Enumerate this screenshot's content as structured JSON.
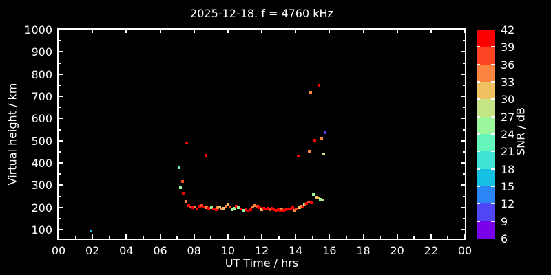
{
  "title": "2025-12-18. f = 4760 kHz",
  "colors": {
    "background": "#000000",
    "text": "#ffffff",
    "axis": "#ffffff"
  },
  "x_axis": {
    "label": "UT Time / hrs",
    "major_hours": [
      0,
      2,
      4,
      6,
      8,
      10,
      12,
      14,
      16,
      18,
      20,
      22,
      24
    ],
    "tick_labels": [
      "00",
      "02",
      "04",
      "06",
      "08",
      "10",
      "12",
      "14",
      "16",
      "18",
      "20",
      "22",
      "00"
    ],
    "minor_hours": [
      1,
      3,
      5,
      7,
      9,
      11,
      13,
      15,
      17,
      19,
      21,
      23
    ],
    "range_hr": [
      0,
      24
    ]
  },
  "y_axis": {
    "label": "Virtual height / km",
    "tick_values": [
      100,
      200,
      300,
      400,
      500,
      600,
      700,
      800,
      900,
      1000
    ],
    "minor_values": [
      150,
      250,
      350,
      450,
      550,
      650,
      750,
      850,
      950
    ],
    "range_km": [
      60,
      1000
    ]
  },
  "colorbar": {
    "label": "SNR / dB",
    "tick_values_top_to_bottom": [
      42,
      39,
      36,
      33,
      30,
      27,
      24,
      21,
      18,
      15,
      12,
      9,
      6
    ],
    "segment_colors_low_to_high": [
      "#7b00ea",
      "#5146f6",
      "#2a86f4",
      "#16c0e4",
      "#40e3d5",
      "#65f6bb",
      "#9cf69c",
      "#c4e485",
      "#f0c161",
      "#fb8440",
      "#fb4522",
      "#fa0000"
    ],
    "bin_edges_dB": [
      6,
      9,
      12,
      15,
      18,
      21,
      24,
      27,
      30,
      33,
      36,
      39,
      42
    ]
  },
  "chart_data": {
    "type": "scatter",
    "title": "2025-12-18. f = 4760 kHz",
    "xlabel": "UT Time / hrs",
    "ylabel": "Virtual height / km",
    "colorbar_label": "SNR / dB",
    "xlim": [
      0,
      24
    ],
    "ylim": [
      60,
      1000
    ],
    "snr_range_dB": [
      6,
      42
    ],
    "grid": false,
    "marker": "square",
    "points_format": [
      "hour_UT",
      "virtual_height_km",
      "snr_dB"
    ],
    "points": [
      [
        1.9,
        95,
        16
      ],
      [
        7.12,
        380,
        22
      ],
      [
        7.2,
        289,
        25
      ],
      [
        7.32,
        317,
        37
      ],
      [
        7.36,
        261,
        41
      ],
      [
        7.53,
        227,
        34
      ],
      [
        7.57,
        490,
        41
      ],
      [
        8.72,
        435,
        41
      ],
      [
        7.69,
        208,
        41
      ],
      [
        7.81,
        202,
        37
      ],
      [
        7.93,
        199,
        41
      ],
      [
        8.05,
        202,
        34
      ],
      [
        8.18,
        193,
        41
      ],
      [
        8.34,
        205,
        41
      ],
      [
        8.46,
        208,
        37
      ],
      [
        8.58,
        202,
        41
      ],
      [
        8.76,
        199,
        34
      ],
      [
        8.87,
        196,
        41
      ],
      [
        9.03,
        199,
        25
      ],
      [
        9.15,
        193,
        41
      ],
      [
        9.31,
        190,
        41
      ],
      [
        9.4,
        199,
        34
      ],
      [
        9.52,
        202,
        31
      ],
      [
        9.6,
        193,
        34
      ],
      [
        9.76,
        196,
        31
      ],
      [
        9.88,
        205,
        34
      ],
      [
        10.01,
        211,
        31
      ],
      [
        10.13,
        202,
        37
      ],
      [
        10.25,
        190,
        25
      ],
      [
        10.37,
        196,
        25
      ],
      [
        10.49,
        205,
        41
      ],
      [
        10.62,
        199,
        25
      ],
      [
        10.78,
        193,
        41
      ],
      [
        10.94,
        187,
        25
      ],
      [
        11.06,
        190,
        41
      ],
      [
        11.19,
        184,
        41
      ],
      [
        11.35,
        190,
        41
      ],
      [
        11.47,
        202,
        34
      ],
      [
        11.59,
        208,
        34
      ],
      [
        11.76,
        205,
        37
      ],
      [
        11.88,
        199,
        41
      ],
      [
        12.0,
        190,
        31
      ],
      [
        12.12,
        196,
        41
      ],
      [
        12.24,
        193,
        41
      ],
      [
        12.37,
        196,
        41
      ],
      [
        12.49,
        190,
        37
      ],
      [
        12.61,
        196,
        41
      ],
      [
        12.73,
        190,
        41
      ],
      [
        12.85,
        187,
        41
      ],
      [
        12.98,
        190,
        41
      ],
      [
        13.1,
        187,
        41
      ],
      [
        13.18,
        193,
        34
      ],
      [
        13.3,
        187,
        41
      ],
      [
        13.42,
        190,
        41
      ],
      [
        13.59,
        193,
        41
      ],
      [
        13.71,
        193,
        41
      ],
      [
        13.83,
        199,
        41
      ],
      [
        13.95,
        187,
        34
      ],
      [
        14.08,
        193,
        37
      ],
      [
        14.24,
        199,
        31
      ],
      [
        14.36,
        205,
        34
      ],
      [
        14.44,
        205,
        41
      ],
      [
        14.52,
        211,
        25
      ],
      [
        14.56,
        214,
        34
      ],
      [
        14.64,
        217,
        41
      ],
      [
        14.77,
        224,
        37
      ],
      [
        14.93,
        221,
        41
      ],
      [
        15.05,
        257,
        25
      ],
      [
        15.21,
        246,
        31
      ],
      [
        15.33,
        243,
        31
      ],
      [
        15.46,
        236,
        25
      ],
      [
        15.58,
        233,
        28
      ],
      [
        14.16,
        431,
        41
      ],
      [
        14.81,
        453,
        34
      ],
      [
        14.89,
        719,
        34
      ],
      [
        15.13,
        502,
        41
      ],
      [
        15.38,
        750,
        41
      ],
      [
        15.54,
        511,
        34
      ],
      [
        15.66,
        440,
        28
      ],
      [
        15.74,
        536,
        10
      ]
    ]
  }
}
